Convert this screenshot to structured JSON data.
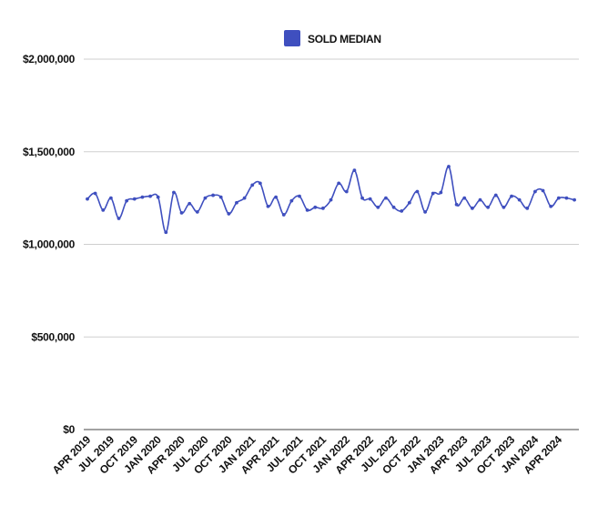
{
  "chart_data": {
    "type": "line",
    "title": "",
    "xlabel": "",
    "ylabel": "",
    "legend": {
      "position": "top",
      "entries": [
        "SOLD MEDIAN"
      ]
    },
    "grid": true,
    "ylim": [
      0,
      2000000
    ],
    "y_ticks": [
      0,
      500000,
      1000000,
      1500000,
      2000000
    ],
    "y_tick_labels": [
      "$0",
      "$500,000",
      "$1,000,000",
      "$1,500,000",
      "$2,000,000"
    ],
    "x_tick_labels": [
      "APR 2019",
      "JUL 2019",
      "OCT 2019",
      "JAN 2020",
      "APR 2020",
      "JUL 2020",
      "OCT 2020",
      "JAN 2021",
      "APR 2021",
      "JUL 2021",
      "OCT 2021",
      "JAN 2022",
      "APR 2022",
      "JUL 2022",
      "OCT 2022",
      "JAN 2023",
      "APR 2023",
      "JUL 2023",
      "OCT 2023",
      "JAN 2024",
      "APR 2024"
    ],
    "series": [
      {
        "name": "SOLD MEDIAN",
        "color": "#3f4fbf",
        "x": [
          "2019-04",
          "2019-05",
          "2019-06",
          "2019-07",
          "2019-08",
          "2019-09",
          "2019-10",
          "2019-11",
          "2019-12",
          "2020-01",
          "2020-02",
          "2020-03",
          "2020-04",
          "2020-05",
          "2020-06",
          "2020-07",
          "2020-08",
          "2020-09",
          "2020-10",
          "2020-11",
          "2020-12",
          "2021-01",
          "2021-02",
          "2021-03",
          "2021-04",
          "2021-05",
          "2021-06",
          "2021-07",
          "2021-08",
          "2021-09",
          "2021-10",
          "2021-11",
          "2021-12",
          "2022-01",
          "2022-02",
          "2022-03",
          "2022-04",
          "2022-05",
          "2022-06",
          "2022-07",
          "2022-08",
          "2022-09",
          "2022-10",
          "2022-11",
          "2022-12",
          "2023-01",
          "2023-02",
          "2023-03",
          "2023-04",
          "2023-05",
          "2023-06",
          "2023-07",
          "2023-08",
          "2023-09",
          "2023-10",
          "2023-11",
          "2023-12",
          "2024-01",
          "2024-02",
          "2024-03",
          "2024-04",
          "2024-05"
        ],
        "values": [
          1245000,
          1275000,
          1185000,
          1250000,
          1140000,
          1235000,
          1245000,
          1255000,
          1260000,
          1255000,
          1065000,
          1280000,
          1170000,
          1220000,
          1175000,
          1250000,
          1265000,
          1255000,
          1165000,
          1225000,
          1250000,
          1320000,
          1330000,
          1205000,
          1255000,
          1160000,
          1235000,
          1260000,
          1185000,
          1200000,
          1195000,
          1240000,
          1330000,
          1285000,
          1400000,
          1250000,
          1245000,
          1200000,
          1250000,
          1200000,
          1180000,
          1225000,
          1285000,
          1175000,
          1275000,
          1280000,
          1420000,
          1215000,
          1250000,
          1195000,
          1240000,
          1200000,
          1265000,
          1200000,
          1260000,
          1240000,
          1195000,
          1285000,
          1290000,
          1205000,
          1250000,
          1250000
        ]
      }
    ],
    "last_value_extra": 1240000
  }
}
